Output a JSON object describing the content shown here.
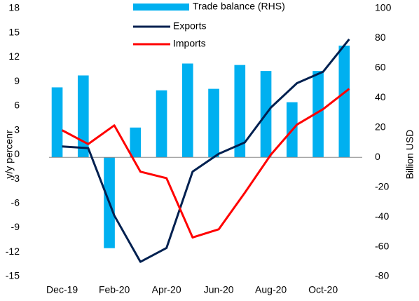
{
  "chart_data": {
    "type": "combo",
    "categories": [
      "Dec-19",
      null,
      "Feb-20",
      null,
      "Apr-20",
      null,
      "Jun-20",
      null,
      "Aug-20",
      null,
      "Oct-20",
      null
    ],
    "y_label": "y/y percenr",
    "y2_label": "Billion USD",
    "ylim": [
      -15,
      18
    ],
    "yticks": [
      -15,
      -12,
      -9,
      -6,
      -3,
      0,
      3,
      6,
      9,
      12,
      15,
      18
    ],
    "y2lim": [
      -80,
      100
    ],
    "y2ticks": [
      -80,
      -60,
      -40,
      -20,
      0,
      20,
      40,
      60,
      80,
      100
    ],
    "series": [
      {
        "name": "Trade balance (RHS)",
        "type": "bar",
        "axis": "y2",
        "color": "#00b0f0",
        "values": [
          47,
          55,
          -61,
          20,
          45,
          63,
          46,
          62,
          58,
          37,
          58,
          75
        ]
      },
      {
        "name": "Exports",
        "type": "line",
        "color": "#002050",
        "values": [
          1.0,
          0.8,
          -7.5,
          -13.2,
          -11.5,
          -2.1,
          0.1,
          1.5,
          5.8,
          8.8,
          10.2,
          14.2
        ]
      },
      {
        "name": "Imports",
        "type": "line",
        "color": "#ff0000",
        "values": [
          3.0,
          1.3,
          3.6,
          -2.1,
          -2.9,
          -10.2,
          -9.2,
          -4.7,
          0.0,
          3.7,
          5.6,
          8.1
        ]
      }
    ]
  }
}
